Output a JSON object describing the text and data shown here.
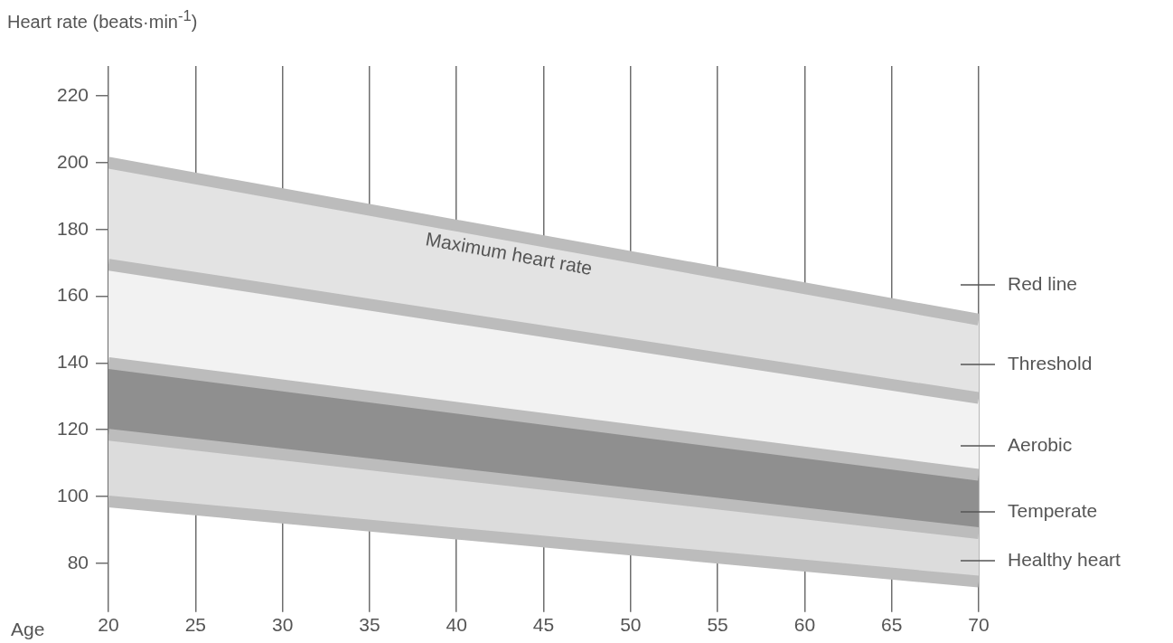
{
  "chart_data": {
    "type": "line",
    "xlabel": "Age",
    "ylabel": "Heart rate (beats·min$^{-1}$)",
    "x": [
      20,
      70
    ],
    "xlim": [
      20,
      70
    ],
    "xticks": [
      20,
      25,
      30,
      35,
      40,
      45,
      50,
      55,
      60,
      65,
      70
    ],
    "ylim": [
      67,
      229
    ],
    "yticks": [
      80,
      100,
      120,
      140,
      160,
      180,
      200,
      220
    ],
    "grid": "x",
    "legend": false,
    "marker": "none",
    "series": [
      {
        "type": "area",
        "color": "#e3e3e3",
        "values": [
          200,
          153
        ]
      },
      {
        "type": "area",
        "color": "#f2f2f2",
        "values": [
          169.5,
          129.5
        ]
      },
      {
        "type": "area",
        "color": "#8f8f8f",
        "values": [
          140,
          106.5
        ]
      },
      {
        "type": "area",
        "color": "#dcdcdc",
        "values": [
          118.5,
          89
        ]
      },
      {
        "color": "#bcbcbc",
        "values": [
          98.5,
          74.5
        ]
      }
    ],
    "annotations": [
      "Maximum heart rate",
      "Red line",
      "Threshold",
      "Aerobic",
      "Temperate",
      "Healthy heart"
    ]
  }
}
